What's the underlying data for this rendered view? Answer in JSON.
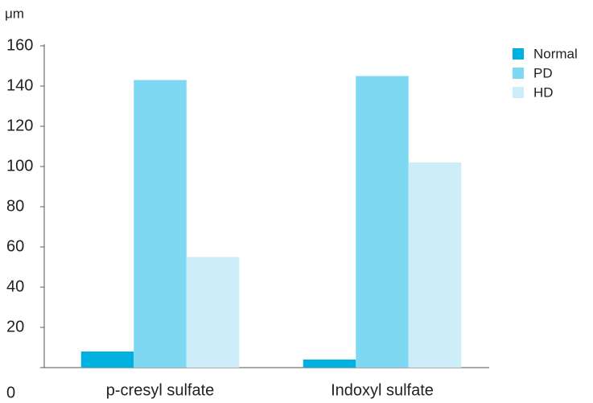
{
  "chart_data": {
    "type": "bar",
    "y_label": "μm",
    "categories": [
      "p-cresyl sulfate",
      "Indoxyl sulfate"
    ],
    "series": [
      {
        "name": "Normal",
        "color": "#00b0e0",
        "values": [
          8,
          4
        ]
      },
      {
        "name": "PD",
        "color": "#7fd8f2",
        "values": [
          143,
          145
        ]
      },
      {
        "name": "HD",
        "color": "#cdeef9",
        "values": [
          55,
          102
        ]
      }
    ],
    "ylim": [
      0,
      160
    ],
    "yticks": [
      0,
      20,
      40,
      60,
      80,
      100,
      120,
      140,
      160
    ],
    "grid": false,
    "legend": "top-right"
  }
}
